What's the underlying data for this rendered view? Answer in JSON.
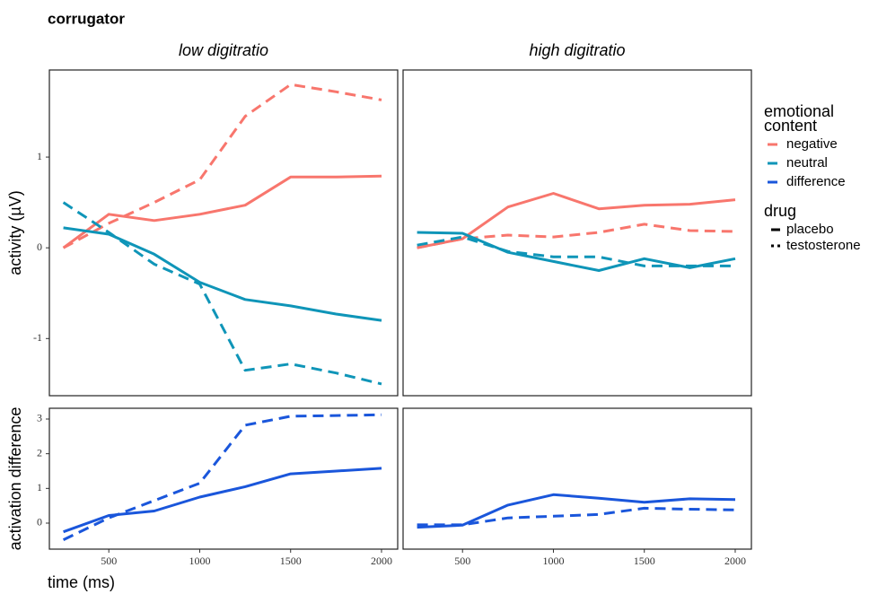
{
  "title": "corrugator",
  "x_label": "time (ms)",
  "legend": {
    "emotion_title": "emotional content",
    "emotions": [
      {
        "label": "negative",
        "color": "#f8766d"
      },
      {
        "label": "neutral",
        "color": "#0f95b8"
      },
      {
        "label": "difference",
        "color": "#1a56db"
      }
    ],
    "drug_title": "drug",
    "drugs": [
      {
        "label": "placebo",
        "dash": "solid"
      },
      {
        "label": "testosterone",
        "dash": "dashed"
      }
    ]
  },
  "chart_data": [
    {
      "type": "line",
      "title": "low digitratio",
      "y_label": "activity (µV)",
      "x": [
        250,
        500,
        750,
        1000,
        1250,
        1500,
        1750,
        2000
      ],
      "xlim": [
        173,
        2089
      ],
      "ylim": [
        -1.63,
        1.96
      ],
      "yticks": [
        -1,
        0,
        1
      ],
      "series": [
        {
          "emotion": "negative",
          "drug": "placebo",
          "color": "#f8766d",
          "values": [
            0.0,
            0.37,
            0.3,
            0.37,
            0.47,
            0.78,
            0.78,
            0.79
          ]
        },
        {
          "emotion": "negative",
          "drug": "testosterone",
          "color": "#f8766d",
          "values": [
            0.0,
            0.27,
            0.5,
            0.75,
            1.45,
            1.8,
            1.72,
            1.63
          ]
        },
        {
          "emotion": "neutral",
          "drug": "placebo",
          "color": "#0f95b8",
          "values": [
            0.22,
            0.15,
            -0.07,
            -0.38,
            -0.57,
            -0.64,
            -0.73,
            -0.8
          ]
        },
        {
          "emotion": "neutral",
          "drug": "testosterone",
          "color": "#0f95b8",
          "values": [
            0.5,
            0.17,
            -0.18,
            -0.4,
            -1.35,
            -1.28,
            -1.38,
            -1.5
          ]
        }
      ]
    },
    {
      "type": "line",
      "title": "high digitratio",
      "x": [
        250,
        500,
        750,
        1000,
        1250,
        1500,
        1750,
        2000
      ],
      "xlim": [
        173,
        2089
      ],
      "ylim": [
        -1.63,
        1.96
      ],
      "series": [
        {
          "emotion": "negative",
          "drug": "placebo",
          "color": "#f8766d",
          "values": [
            0.0,
            0.1,
            0.45,
            0.6,
            0.43,
            0.47,
            0.48,
            0.53
          ]
        },
        {
          "emotion": "negative",
          "drug": "testosterone",
          "color": "#f8766d",
          "values": [
            0.0,
            0.1,
            0.14,
            0.12,
            0.17,
            0.26,
            0.19,
            0.18
          ]
        },
        {
          "emotion": "neutral",
          "drug": "placebo",
          "color": "#0f95b8",
          "values": [
            0.17,
            0.16,
            -0.05,
            -0.15,
            -0.25,
            -0.12,
            -0.22,
            -0.12
          ]
        },
        {
          "emotion": "neutral",
          "drug": "testosterone",
          "color": "#0f95b8",
          "values": [
            0.03,
            0.12,
            -0.04,
            -0.1,
            -0.1,
            -0.2,
            -0.2,
            -0.2
          ]
        }
      ]
    },
    {
      "type": "line",
      "y_label": "activation difference",
      "x": [
        250,
        500,
        750,
        1000,
        1250,
        1500,
        1750,
        2000
      ],
      "xlim": [
        173,
        2089
      ],
      "ylim": [
        -0.75,
        3.31
      ],
      "yticks": [
        0,
        1,
        2,
        3
      ],
      "xticks": [
        500,
        1000,
        1500,
        2000
      ],
      "series": [
        {
          "emotion": "difference",
          "drug": "placebo",
          "color": "#1a56db",
          "values": [
            -0.25,
            0.22,
            0.35,
            0.75,
            1.05,
            1.42,
            1.5,
            1.58
          ]
        },
        {
          "emotion": "difference",
          "drug": "testosterone",
          "color": "#1a56db",
          "values": [
            -0.48,
            0.15,
            0.65,
            1.15,
            2.82,
            3.08,
            3.1,
            3.12
          ]
        }
      ]
    },
    {
      "type": "line",
      "x": [
        250,
        500,
        750,
        1000,
        1250,
        1500,
        1750,
        2000
      ],
      "xlim": [
        173,
        2089
      ],
      "ylim": [
        -0.75,
        3.31
      ],
      "xticks": [
        500,
        1000,
        1500,
        2000
      ],
      "series": [
        {
          "emotion": "difference",
          "drug": "placebo",
          "color": "#1a56db",
          "values": [
            -0.12,
            -0.06,
            0.52,
            0.82,
            0.72,
            0.6,
            0.7,
            0.68
          ]
        },
        {
          "emotion": "difference",
          "drug": "testosterone",
          "color": "#1a56db",
          "values": [
            -0.05,
            -0.05,
            0.15,
            0.2,
            0.25,
            0.43,
            0.4,
            0.38
          ]
        }
      ]
    }
  ]
}
